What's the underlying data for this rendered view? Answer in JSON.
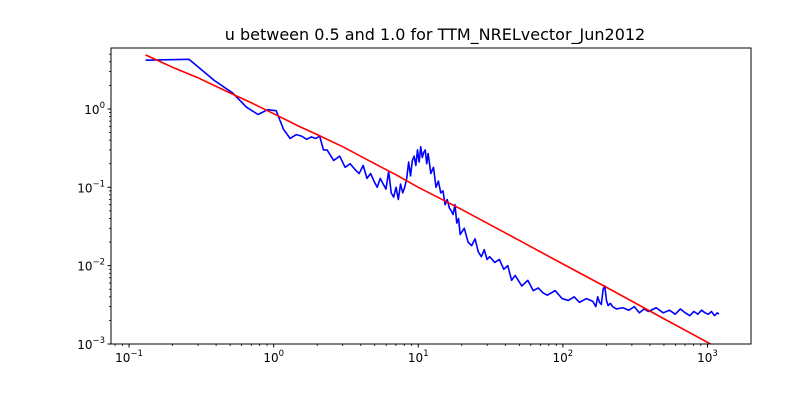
{
  "chart_data": {
    "type": "line",
    "title": "u between 0.5 and 1.0  for TTM_NRELvector_Jun2012",
    "xlabel": "",
    "ylabel": "",
    "xscale": "log",
    "yscale": "log",
    "xlim": [
      0.075,
      2000
    ],
    "ylim": [
      0.001,
      6
    ],
    "grid": false,
    "x_ticks": [
      {
        "value": 0.1,
        "base": "10",
        "exp": "−1"
      },
      {
        "value": 1,
        "base": "10",
        "exp": "0"
      },
      {
        "value": 10,
        "base": "10",
        "exp": "1"
      },
      {
        "value": 100,
        "base": "10",
        "exp": "2"
      },
      {
        "value": 1000,
        "base": "10",
        "exp": "3"
      }
    ],
    "y_ticks": [
      {
        "value": 0.001,
        "base": "10",
        "exp": "−3"
      },
      {
        "value": 0.01,
        "base": "10",
        "exp": "−2"
      },
      {
        "value": 0.1,
        "base": "10",
        "exp": "−1"
      },
      {
        "value": 1,
        "base": "10",
        "exp": "0"
      }
    ],
    "series": [
      {
        "color": "#0000ff",
        "kind": "measured spectrum",
        "x": [
          0.13,
          0.26,
          0.39,
          0.52,
          0.65,
          0.78,
          0.91,
          1.04,
          1.17,
          1.3,
          1.43,
          1.56,
          1.69,
          1.82,
          1.95,
          2.08,
          2.21,
          2.34,
          2.6,
          2.86,
          3.12,
          3.38,
          3.64,
          3.9,
          4.16,
          4.42,
          4.68,
          4.94,
          5.2,
          5.46,
          5.72,
          5.98,
          6.24,
          6.5,
          6.76,
          7.02,
          7.28,
          7.54,
          7.8,
          8.06,
          8.32,
          8.58,
          8.84,
          9.1,
          9.36,
          9.62,
          9.88,
          10.14,
          10.4,
          10.66,
          10.92,
          11.18,
          11.44,
          11.7,
          12.22,
          12.74,
          13.26,
          13.78,
          14.3,
          14.82,
          15.34,
          15.86,
          16.38,
          16.9,
          17.42,
          17.94,
          18.46,
          18.98,
          19.5,
          20.8,
          22.1,
          23.4,
          24.7,
          26,
          27.3,
          28.6,
          29.9,
          31.2,
          33.8,
          36.4,
          39,
          41.6,
          44.2,
          46.8,
          52,
          57.2,
          62.4,
          67.6,
          72.8,
          78,
          88.4,
          98.8,
          109.2,
          119.6,
          130,
          145.6,
          161.2,
          169,
          174.2,
          179.4,
          184.6,
          189.8,
          195,
          200.2,
          205.4,
          213.2,
          221,
          234,
          260,
          286,
          312,
          338,
          364,
          390,
          442,
          494,
          546,
          598,
          650,
          702,
          754,
          806,
          858,
          910,
          962,
          1014,
          1066,
          1118,
          1170,
          1200
        ],
        "y": [
          4.2,
          4.3,
          2.3,
          1.6,
          1.05,
          0.85,
          0.98,
          0.95,
          0.55,
          0.42,
          0.47,
          0.45,
          0.41,
          0.44,
          0.42,
          0.45,
          0.3,
          0.3,
          0.22,
          0.25,
          0.18,
          0.2,
          0.17,
          0.15,
          0.19,
          0.13,
          0.15,
          0.12,
          0.1,
          0.13,
          0.11,
          0.095,
          0.16,
          0.085,
          0.075,
          0.1,
          0.07,
          0.11,
          0.085,
          0.1,
          0.13,
          0.21,
          0.14,
          0.22,
          0.25,
          0.19,
          0.3,
          0.21,
          0.33,
          0.24,
          0.28,
          0.3,
          0.2,
          0.27,
          0.15,
          0.18,
          0.1,
          0.12,
          0.085,
          0.09,
          0.06,
          0.07,
          0.055,
          0.05,
          0.045,
          0.06,
          0.035,
          0.04,
          0.025,
          0.03,
          0.02,
          0.018,
          0.022,
          0.015,
          0.013,
          0.016,
          0.012,
          0.013,
          0.011,
          0.012,
          0.009,
          0.01,
          0.0065,
          0.0075,
          0.0055,
          0.0065,
          0.0048,
          0.0052,
          0.0045,
          0.0042,
          0.0048,
          0.0038,
          0.0036,
          0.004,
          0.0034,
          0.0038,
          0.0035,
          0.003,
          0.004,
          0.0034,
          0.0032,
          0.005,
          0.0055,
          0.0036,
          0.0031,
          0.0033,
          0.003,
          0.0028,
          0.0029,
          0.0027,
          0.003,
          0.0025,
          0.0028,
          0.0026,
          0.0029,
          0.0025,
          0.0027,
          0.0024,
          0.0028,
          0.0025,
          0.0023,
          0.0026,
          0.0024,
          0.0027,
          0.0025,
          0.0024,
          0.0026,
          0.0023,
          0.0025,
          0.0024
        ]
      },
      {
        "color": "#ff0000",
        "kind": "fitted curve",
        "x": [
          0.13,
          0.2,
          0.3,
          0.5,
          0.7,
          1,
          1.5,
          2,
          3,
          5,
          7,
          10,
          20,
          50,
          100,
          200,
          500,
          1000,
          1500
        ],
        "y": [
          4.9,
          3.4,
          2.5,
          1.6,
          1.2,
          0.87,
          0.6,
          0.47,
          0.33,
          0.2,
          0.145,
          0.1,
          0.052,
          0.021,
          0.0105,
          0.0053,
          0.0021,
          0.00105,
          0.0007
        ]
      }
    ]
  }
}
